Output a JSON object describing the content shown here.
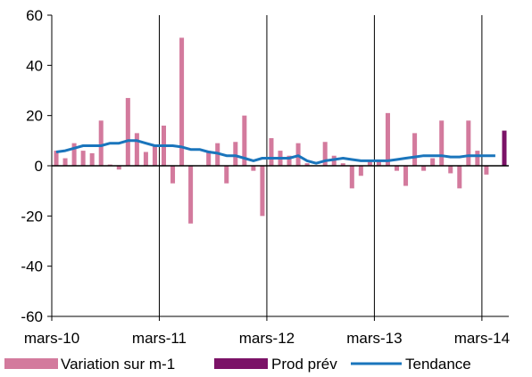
{
  "chart_data": {
    "type": "bar",
    "ylim": [
      -60,
      60
    ],
    "y_ticks": [
      60,
      40,
      20,
      0,
      -20,
      -40,
      -60
    ],
    "x_tick_labels": [
      "mars-10",
      "mars-11",
      "mars-12",
      "mars-13",
      "mars-14"
    ],
    "x_tick_months": [
      0,
      12,
      24,
      36,
      48
    ],
    "grid": "vertical lines at each x tick",
    "legend_position": "bottom",
    "series": [
      {
        "name": "Variation sur m-1",
        "type": "bar",
        "color": "#d37a9d",
        "months": [
          0,
          1,
          2,
          3,
          4,
          5,
          6,
          7,
          8,
          9,
          10,
          11,
          12,
          13,
          14,
          15,
          16,
          17,
          18,
          19,
          20,
          21,
          22,
          23,
          24,
          25,
          26,
          27,
          28,
          29,
          30,
          31,
          32,
          33,
          34,
          35,
          36,
          37,
          38,
          39,
          40,
          41,
          42,
          43,
          44,
          45,
          46,
          47,
          48,
          49
        ],
        "values": [
          6,
          3,
          9,
          6,
          5,
          18,
          0.5,
          -1.5,
          27,
          13,
          5.5,
          8,
          16,
          -7,
          51,
          -23,
          0,
          6,
          9,
          -7,
          9.5,
          20,
          -2,
          -20,
          11,
          6,
          4,
          9,
          1,
          0,
          9.5,
          4,
          1,
          -9,
          -4,
          2,
          2,
          21,
          -2,
          -8,
          13,
          -2,
          3,
          18,
          -3,
          -9,
          18,
          6,
          -3.5,
          0
        ]
      },
      {
        "name": "Prod prév",
        "type": "bar",
        "color": "#7b1267",
        "months": [
          50
        ],
        "values": [
          14
        ]
      },
      {
        "name": "Tendance",
        "type": "line",
        "color": "#1a75bc",
        "months": [
          0,
          1,
          2,
          3,
          4,
          5,
          6,
          7,
          8,
          9,
          10,
          11,
          12,
          13,
          14,
          15,
          16,
          17,
          18,
          19,
          20,
          21,
          22,
          23,
          24,
          25,
          26,
          27,
          28,
          29,
          30,
          31,
          32,
          33,
          34,
          35,
          36,
          37,
          38,
          39,
          40,
          41,
          42,
          43,
          44,
          45,
          46,
          47,
          48,
          49
        ],
        "values": [
          5.5,
          6,
          7,
          8,
          8,
          8,
          9,
          9,
          10,
          10,
          9,
          8,
          8,
          8,
          7.5,
          6.5,
          6.5,
          5.5,
          5,
          4,
          4,
          3,
          2,
          3,
          3,
          3,
          3,
          4,
          2,
          1,
          2,
          2.5,
          3,
          2.5,
          2,
          2,
          2,
          2,
          2.5,
          3,
          3.5,
          4,
          4,
          4,
          3.5,
          3.5,
          4,
          4,
          4,
          4
        ]
      }
    ]
  }
}
